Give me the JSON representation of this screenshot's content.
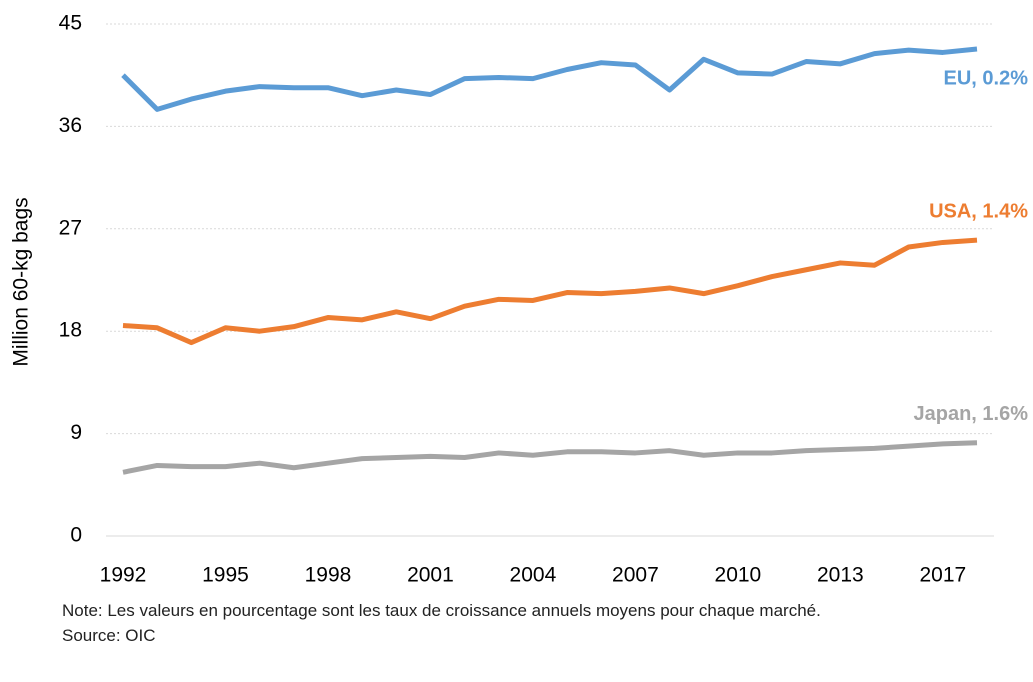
{
  "chart_data": {
    "type": "line",
    "y_label": "Million 60-kg bags",
    "categories": [
      "1992",
      null,
      null,
      "1995",
      null,
      null,
      "1998",
      null,
      null,
      "2001",
      null,
      null,
      "2004",
      null,
      null,
      "2007",
      null,
      null,
      "2010",
      null,
      null,
      "2013",
      null,
      null,
      "2017",
      null
    ],
    "series": [
      {
        "name": "EU, 0.2%",
        "color": "#5b9bd5",
        "values": [
          40.5,
          37.5,
          38.4,
          39.1,
          39.5,
          39.4,
          39.4,
          38.7,
          39.2,
          38.8,
          40.2,
          40.3,
          40.2,
          41.0,
          41.6,
          41.4,
          39.2,
          41.9,
          40.7,
          40.6,
          41.7,
          41.5,
          42.4,
          42.7,
          42.5,
          42.8
        ]
      },
      {
        "name": "USA, 1.4%",
        "color": "#ed7d31",
        "values": [
          18.5,
          18.3,
          17.0,
          18.3,
          18.0,
          18.4,
          19.2,
          19.0,
          19.7,
          19.1,
          20.2,
          20.8,
          20.7,
          21.4,
          21.3,
          21.5,
          21.8,
          21.3,
          22.0,
          22.8,
          23.4,
          24.0,
          23.8,
          25.4,
          25.8,
          26.0
        ]
      },
      {
        "name": "Japan, 1.6%",
        "color": "#a5a5a5",
        "values": [
          5.6,
          6.2,
          6.1,
          6.1,
          6.4,
          6.0,
          6.4,
          6.8,
          6.9,
          7.0,
          6.9,
          7.3,
          7.1,
          7.4,
          7.4,
          7.3,
          7.5,
          7.1,
          7.3,
          7.3,
          7.5,
          7.6,
          7.7,
          7.9,
          8.1,
          8.2
        ]
      }
    ],
    "ylim": [
      0,
      45
    ],
    "yticks": [
      0,
      9,
      18,
      27,
      36,
      45
    ],
    "grid": true,
    "note": "Note: Les valeurs en pourcentage sont les taux de croissance annuels moyens pour chaque marché.",
    "source": "Source: OIC"
  }
}
